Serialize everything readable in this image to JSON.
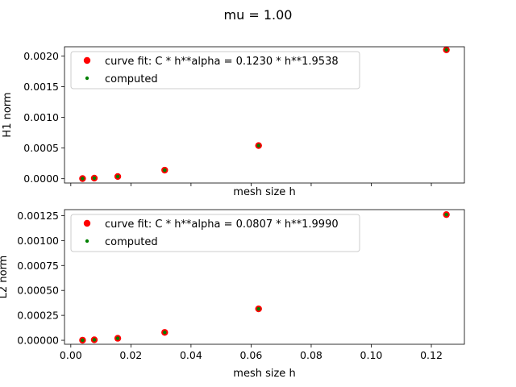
{
  "figure": {
    "suptitle": "mu = 1.00"
  },
  "chart_data": [
    {
      "type": "scatter",
      "title": "",
      "xlabel": "mesh size h",
      "ylabel": "H1 norm",
      "xlim": [
        -0.0021,
        0.131
      ],
      "ylim": [
        -7e-05,
        0.00215
      ],
      "x_ticks": [
        0.0,
        0.02,
        0.04,
        0.06,
        0.08,
        0.1,
        0.12
      ],
      "x_tick_labels_shown": false,
      "y_ticks": [
        0.0,
        0.0005,
        0.001,
        0.0015,
        0.002
      ],
      "y_tick_labels": [
        "0.0000",
        "0.0005",
        "0.0010",
        "0.0015",
        "0.0020"
      ],
      "grid": false,
      "legend_position": "top-left",
      "series": [
        {
          "name": "curve fit: C * h**alpha = 0.1230 * h**1.9538",
          "color": "#ff0000",
          "marker": "large-circle",
          "x": [
            0.125,
            0.0625,
            0.03125,
            0.015625,
            0.0078125,
            0.00390625
          ],
          "y": [
            0.0021,
            0.00054,
            0.00014,
            3.61e-05,
            9.3e-06,
            2.4e-06
          ]
        },
        {
          "name": "computed",
          "color": "#008000",
          "marker": "small-dot",
          "x": [
            0.125,
            0.0625,
            0.03125,
            0.015625,
            0.0078125,
            0.00390625
          ],
          "y": [
            0.0021,
            0.00054,
            0.00014,
            3.61e-05,
            9.3e-06,
            2.4e-06
          ]
        }
      ]
    },
    {
      "type": "scatter",
      "title": "",
      "xlabel": "mesh size h",
      "ylabel": "L2 norm",
      "xlim": [
        -0.0021,
        0.131
      ],
      "ylim": [
        -4e-05,
        0.00131
      ],
      "x_ticks": [
        0.0,
        0.02,
        0.04,
        0.06,
        0.08,
        0.1,
        0.12
      ],
      "x_tick_labels": [
        "0.00",
        "0.02",
        "0.04",
        "0.06",
        "0.08",
        "0.10",
        "0.12"
      ],
      "y_ticks": [
        0.0,
        0.00025,
        0.0005,
        0.00075,
        0.001,
        0.00125
      ],
      "y_tick_labels": [
        "0.00000",
        "0.00025",
        "0.00050",
        "0.00075",
        "0.00100",
        "0.00125"
      ],
      "grid": false,
      "legend_position": "top-left",
      "series": [
        {
          "name": "curve fit: C * h**alpha = 0.0807 * h**1.9990",
          "color": "#ff0000",
          "marker": "large-circle",
          "x": [
            0.125,
            0.0625,
            0.03125,
            0.015625,
            0.0078125,
            0.00390625
          ],
          "y": [
            0.00126,
            0.000315,
            7.9e-05,
            1.98e-05,
            4.9e-06,
            1.2e-06
          ]
        },
        {
          "name": "computed",
          "color": "#008000",
          "marker": "small-dot",
          "x": [
            0.125,
            0.0625,
            0.03125,
            0.015625,
            0.0078125,
            0.00390625
          ],
          "y": [
            0.00126,
            0.000315,
            7.9e-05,
            1.98e-05,
            4.9e-06,
            1.2e-06
          ]
        }
      ]
    }
  ]
}
